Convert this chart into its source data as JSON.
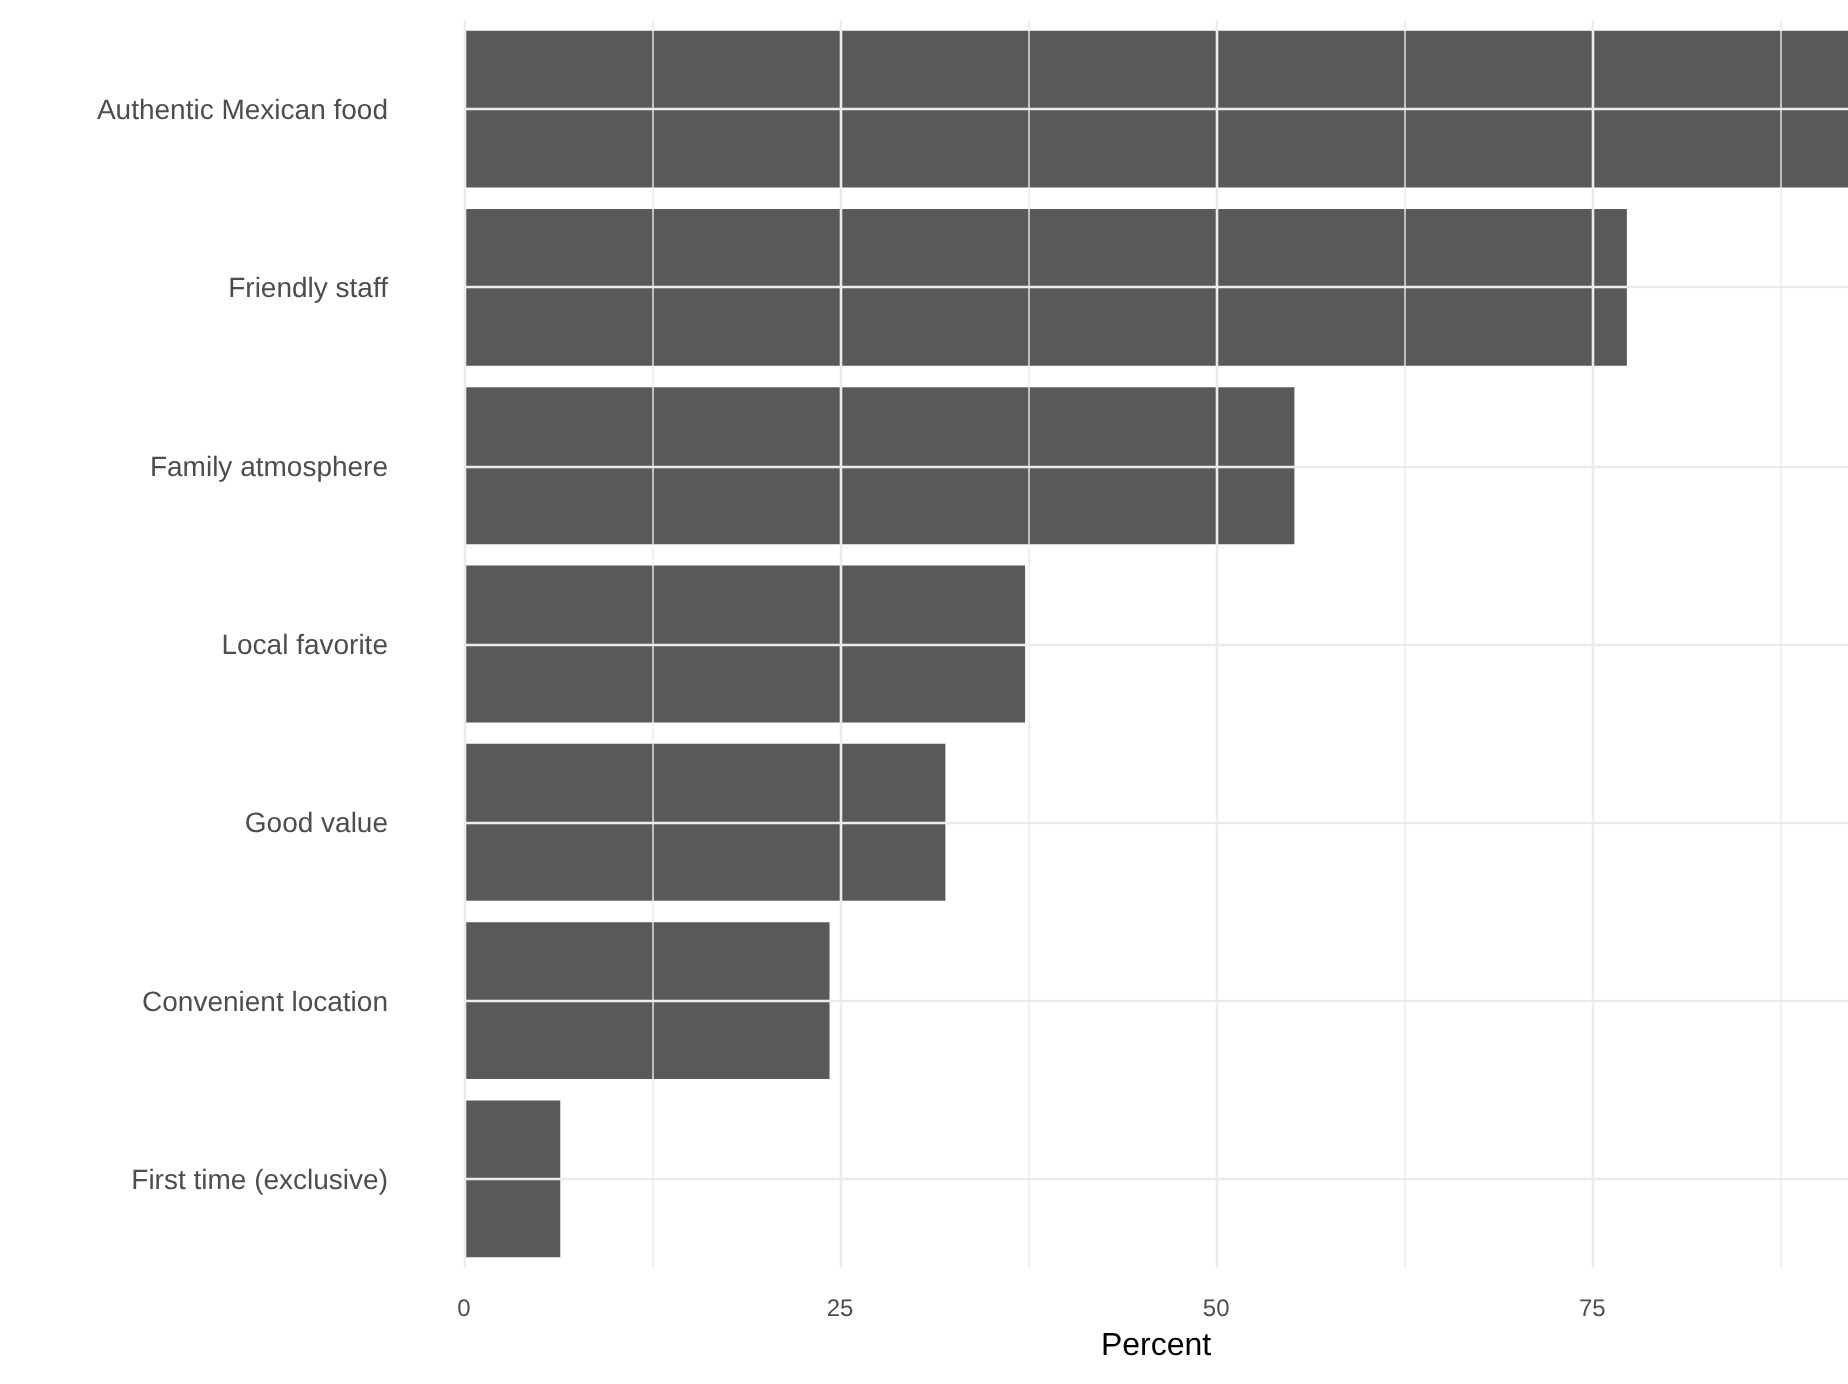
{
  "chart_data": {
    "type": "bar",
    "orientation": "horizontal",
    "xlabel": "Percent",
    "categories": [
      "Authentic Mexican food",
      "Friendly staff",
      "Family atmosphere",
      "Local favorite",
      "Good value",
      "Convenient location",
      "First time (exclusive)"
    ],
    "values": [
      92,
      77.3,
      55.2,
      37.3,
      32,
      24.3,
      6.4
    ],
    "color": "#595959",
    "xlim": [
      0,
      92
    ],
    "xticks": [
      0,
      25,
      50,
      75
    ],
    "grid": true
  }
}
